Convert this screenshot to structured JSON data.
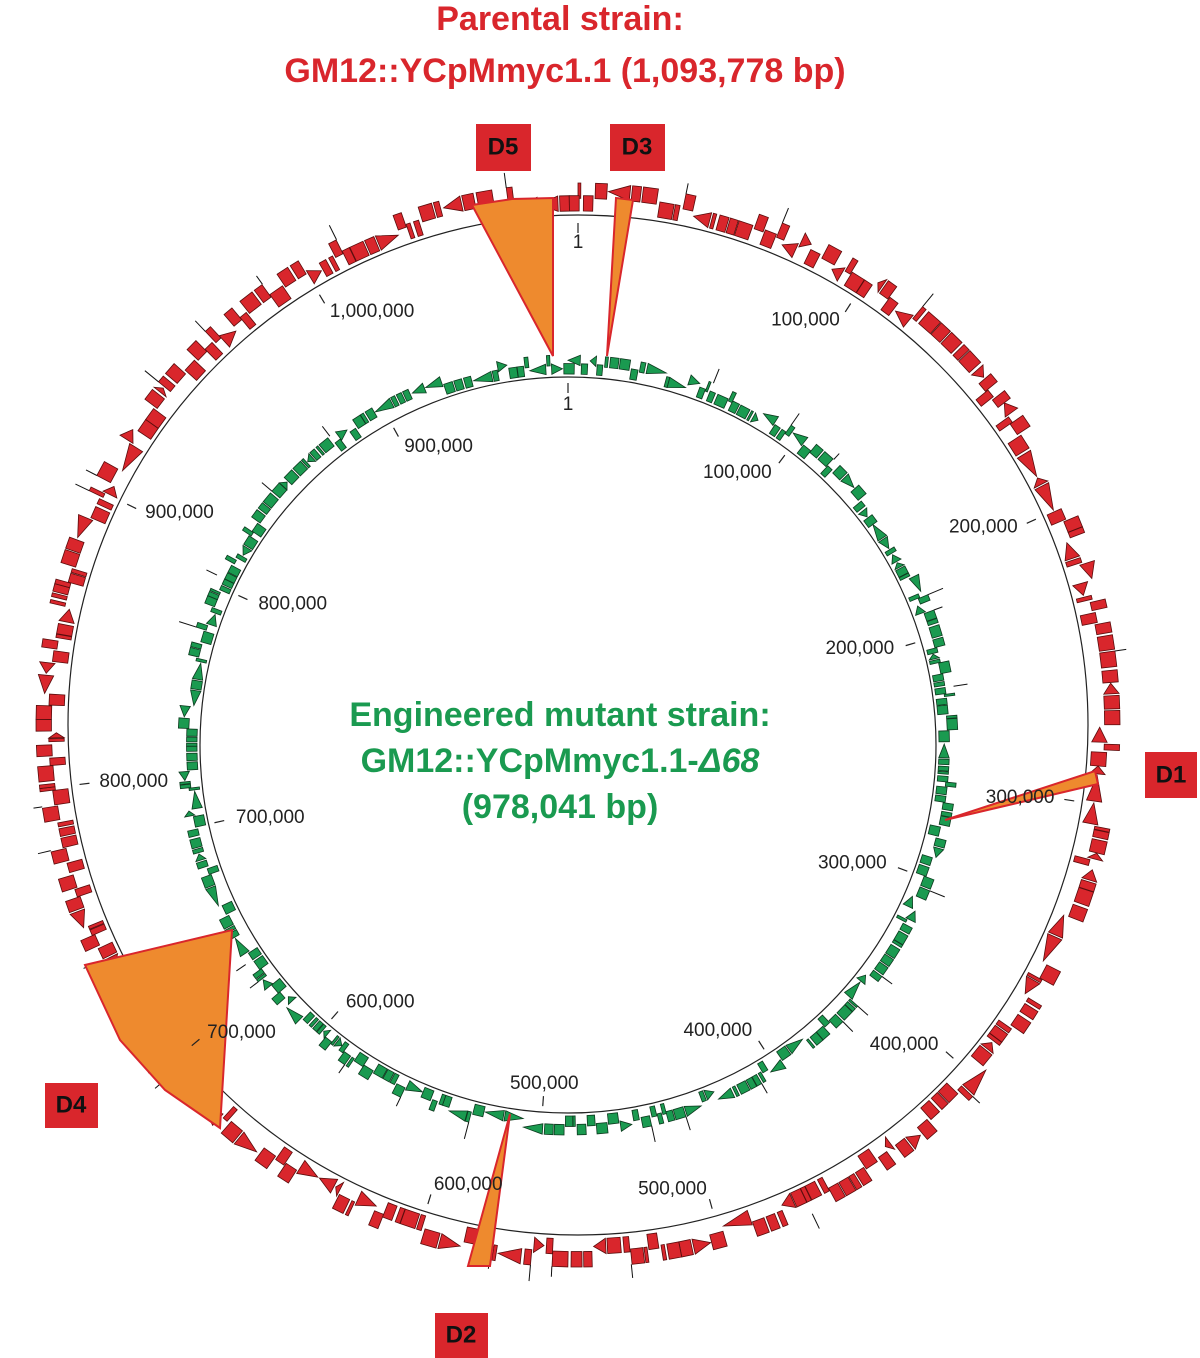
{
  "parental": {
    "title": "Parental strain:",
    "subtitle": "GM12::YCpMmyc1.1 (1,093,778 bp)"
  },
  "mutant": {
    "title": "Engineered mutant strain:",
    "name": "GM12::YCpMmyc1.1-",
    "name_suffix": "Δ68",
    "size": "(978,041 bp)"
  },
  "outer_ring": {
    "ticks": [
      "1",
      "100,000",
      "200,000",
      "300,000",
      "400,000",
      "500,000",
      "600,000",
      "700,000",
      "800,000",
      "900,000",
      "1,000,000"
    ]
  },
  "inner_ring": {
    "ticks": [
      "1",
      "100,000",
      "200,000",
      "300,000",
      "400,000",
      "500,000",
      "600,000",
      "700,000",
      "800,000",
      "900,000"
    ]
  },
  "deletions": [
    "D1",
    "D2",
    "D3",
    "D4",
    "D5"
  ]
}
